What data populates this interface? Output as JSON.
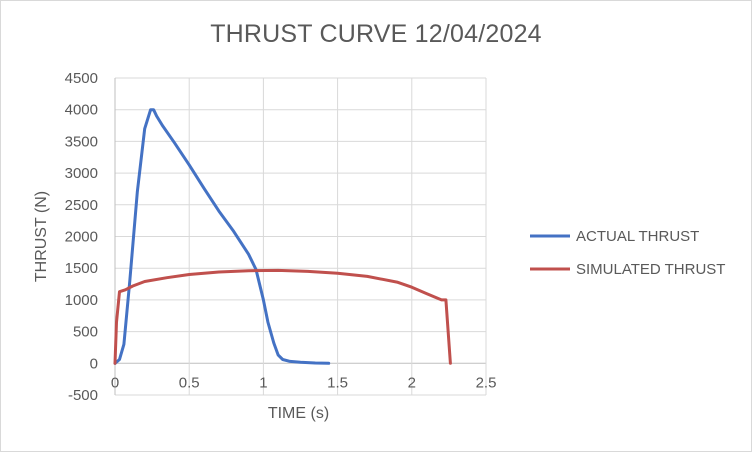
{
  "chart_data": {
    "type": "line",
    "title": "THRUST CURVE 12/04/2024",
    "xlabel": "TIME (s)",
    "ylabel": "THRUST (N)",
    "xlim": [
      0,
      2.5
    ],
    "ylim": [
      -500,
      4500
    ],
    "x_ticks": [
      "0",
      "0.5",
      "1",
      "1.5",
      "2",
      "2.5"
    ],
    "y_ticks": [
      "-500",
      "0",
      "500",
      "1000",
      "1500",
      "2000",
      "2500",
      "3000",
      "3500",
      "4000",
      "4500"
    ],
    "grid": true,
    "legend_position": "right",
    "series": [
      {
        "name": "ACTUAL THRUST",
        "color": "#4472c4",
        "x": [
          0,
          0.03,
          0.06,
          0.1,
          0.15,
          0.2,
          0.24,
          0.26,
          0.28,
          0.32,
          0.4,
          0.5,
          0.6,
          0.7,
          0.8,
          0.9,
          0.95,
          1.0,
          1.03,
          1.07,
          1.1,
          1.13,
          1.18,
          1.25,
          1.35,
          1.44
        ],
        "y": [
          0,
          60,
          300,
          1300,
          2700,
          3700,
          4000,
          4000,
          3900,
          3750,
          3480,
          3130,
          2760,
          2400,
          2080,
          1720,
          1480,
          1000,
          650,
          320,
          130,
          60,
          30,
          15,
          5,
          0
        ]
      },
      {
        "name": "SIMULATED THRUST",
        "color": "#c0504d",
        "x": [
          0,
          0.01,
          0.03,
          0.07,
          0.12,
          0.2,
          0.35,
          0.5,
          0.7,
          0.9,
          1.1,
          1.3,
          1.5,
          1.7,
          1.9,
          2.0,
          2.1,
          2.2,
          2.23,
          2.26
        ],
        "y": [
          0,
          650,
          1130,
          1160,
          1220,
          1290,
          1350,
          1400,
          1440,
          1460,
          1465,
          1450,
          1420,
          1370,
          1280,
          1200,
          1100,
          1000,
          1000,
          0
        ]
      }
    ]
  }
}
